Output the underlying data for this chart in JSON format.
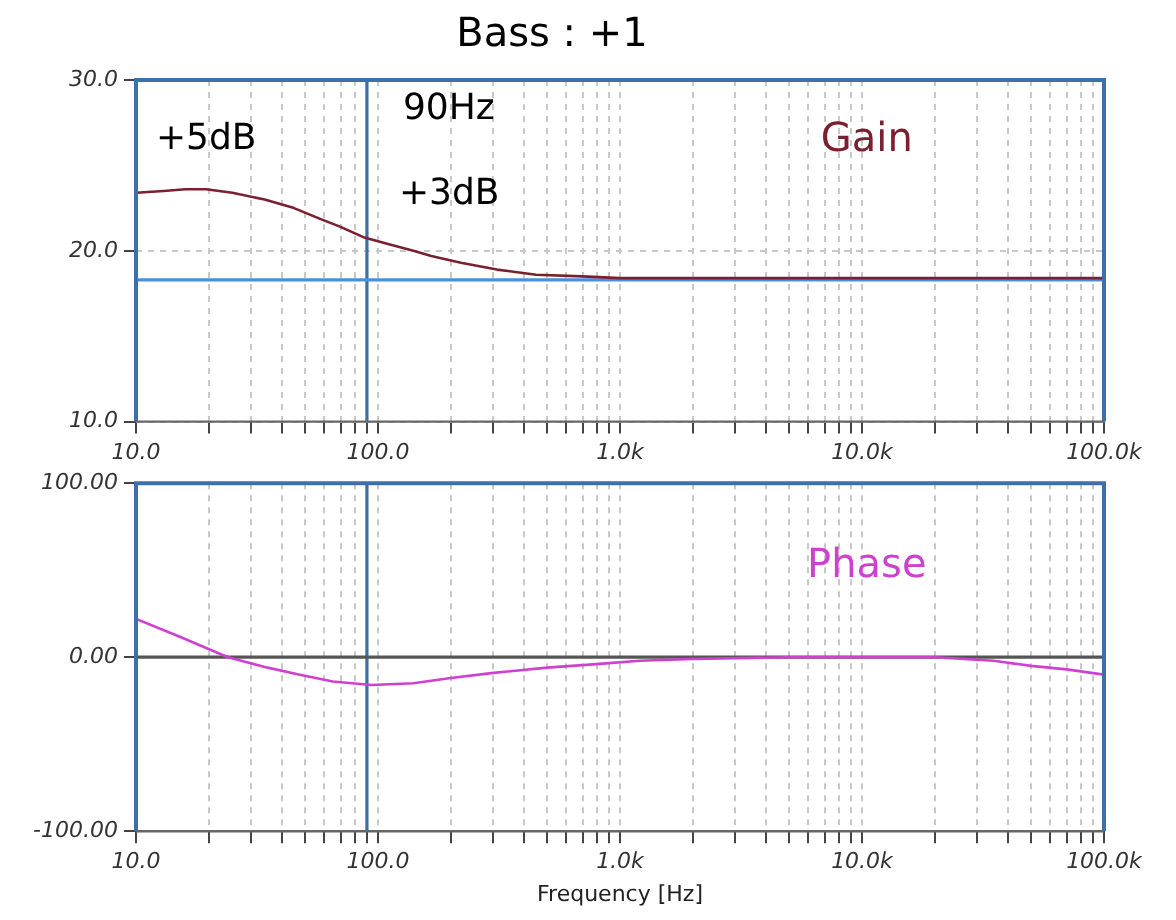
{
  "chart_data": [
    {
      "type": "line",
      "title": "Bass : +1",
      "log": "x",
      "grid": true,
      "legend": false,
      "marker": "none",
      "xlim": [
        10,
        100000
      ],
      "ylim": [
        10,
        30
      ],
      "xticks": [
        {
          "value": 10,
          "label": "10.0"
        },
        {
          "value": 20,
          "label": null
        },
        {
          "value": 30,
          "label": null
        },
        {
          "value": 40,
          "label": null
        },
        {
          "value": 50,
          "label": null
        },
        {
          "value": 60,
          "label": null
        },
        {
          "value": 70,
          "label": null
        },
        {
          "value": 80,
          "label": null
        },
        {
          "value": 90,
          "label": null
        },
        {
          "value": 100,
          "label": "100.0"
        },
        {
          "value": 200,
          "label": null
        },
        {
          "value": 300,
          "label": null
        },
        {
          "value": 400,
          "label": null
        },
        {
          "value": 500,
          "label": null
        },
        {
          "value": 600,
          "label": null
        },
        {
          "value": 700,
          "label": null
        },
        {
          "value": 800,
          "label": null
        },
        {
          "value": 900,
          "label": null
        },
        {
          "value": 1000,
          "label": "1.0k"
        },
        {
          "value": 2000,
          "label": null
        },
        {
          "value": 3000,
          "label": null
        },
        {
          "value": 4000,
          "label": null
        },
        {
          "value": 5000,
          "label": null
        },
        {
          "value": 6000,
          "label": null
        },
        {
          "value": 7000,
          "label": null
        },
        {
          "value": 8000,
          "label": null
        },
        {
          "value": 9000,
          "label": null
        },
        {
          "value": 10000,
          "label": "10.0k"
        },
        {
          "value": 20000,
          "label": null
        },
        {
          "value": 30000,
          "label": null
        },
        {
          "value": 40000,
          "label": null
        },
        {
          "value": 50000,
          "label": null
        },
        {
          "value": 60000,
          "label": null
        },
        {
          "value": 70000,
          "label": null
        },
        {
          "value": 80000,
          "label": null
        },
        {
          "value": 90000,
          "label": null
        },
        {
          "value": 100000,
          "label": "100.0k"
        }
      ],
      "yticks": [
        {
          "value": 10,
          "label": "10.0"
        },
        {
          "value": 20,
          "label": "20.0"
        },
        {
          "value": 30,
          "label": "30.0"
        }
      ],
      "series": [
        {
          "name": "Gain",
          "color": "#7a2030",
          "x": [
            10,
            13,
            16,
            19.5,
            25,
            34,
            45,
            57,
            70,
            87,
            110,
            140,
            166,
            220,
            310,
            450,
            700,
            1000,
            2000,
            5000,
            10000,
            30000,
            100000
          ],
          "values": [
            23.4,
            23.5,
            23.6,
            23.6,
            23.4,
            23.0,
            22.5,
            21.9,
            21.4,
            20.8,
            20.4,
            20.0,
            19.7,
            19.3,
            18.9,
            18.6,
            18.5,
            18.4,
            18.4,
            18.4,
            18.4,
            18.4,
            18.4
          ]
        }
      ],
      "ref_lines": [
        {
          "axis": "x",
          "value": 90,
          "label": "90Hz",
          "color": "#3a6ea5"
        },
        {
          "axis": "y",
          "value": 18.3,
          "label": null,
          "color": "#4a90d9"
        }
      ],
      "annotations": [
        {
          "text": "+5dB",
          "x": 19.5,
          "y": 23.6
        },
        {
          "text": "+3dB",
          "x": 90,
          "y": 20.8
        }
      ]
    },
    {
      "type": "line",
      "xlabel": "Frequency [Hz]",
      "log": "x",
      "grid": true,
      "legend": false,
      "marker": "none",
      "xlim": [
        10,
        100000
      ],
      "ylim": [
        -100,
        100
      ],
      "xticks": [
        {
          "value": 10,
          "label": "10.0"
        },
        {
          "value": 20,
          "label": null
        },
        {
          "value": 30,
          "label": null
        },
        {
          "value": 40,
          "label": null
        },
        {
          "value": 50,
          "label": null
        },
        {
          "value": 60,
          "label": null
        },
        {
          "value": 70,
          "label": null
        },
        {
          "value": 80,
          "label": null
        },
        {
          "value": 90,
          "label": null
        },
        {
          "value": 100,
          "label": "100.0"
        },
        {
          "value": 200,
          "label": null
        },
        {
          "value": 300,
          "label": null
        },
        {
          "value": 400,
          "label": null
        },
        {
          "value": 500,
          "label": null
        },
        {
          "value": 600,
          "label": null
        },
        {
          "value": 700,
          "label": null
        },
        {
          "value": 800,
          "label": null
        },
        {
          "value": 900,
          "label": null
        },
        {
          "value": 1000,
          "label": "1.0k"
        },
        {
          "value": 2000,
          "label": null
        },
        {
          "value": 3000,
          "label": null
        },
        {
          "value": 4000,
          "label": null
        },
        {
          "value": 5000,
          "label": null
        },
        {
          "value": 6000,
          "label": null
        },
        {
          "value": 7000,
          "label": null
        },
        {
          "value": 8000,
          "label": null
        },
        {
          "value": 9000,
          "label": null
        },
        {
          "value": 10000,
          "label": "10.0k"
        },
        {
          "value": 20000,
          "label": null
        },
        {
          "value": 30000,
          "label": null
        },
        {
          "value": 40000,
          "label": null
        },
        {
          "value": 50000,
          "label": null
        },
        {
          "value": 60000,
          "label": null
        },
        {
          "value": 70000,
          "label": null
        },
        {
          "value": 80000,
          "label": null
        },
        {
          "value": 90000,
          "label": null
        },
        {
          "value": 100000,
          "label": "100.0k"
        }
      ],
      "yticks": [
        {
          "value": -100,
          "label": "-100.00"
        },
        {
          "value": 0,
          "label": "0.00"
        },
        {
          "value": 100,
          "label": "100.00"
        }
      ],
      "series": [
        {
          "name": "Phase",
          "color": "#d040d0",
          "x": [
            10,
            15,
            24,
            35,
            47,
            65,
            94,
            140,
            200,
            300,
            500,
            800,
            1200,
            2000,
            5000,
            10000,
            20000,
            35000,
            50000,
            70000,
            100000
          ],
          "values": [
            22,
            12,
            0,
            -6,
            -10,
            -14,
            -16,
            -15,
            -12,
            -9,
            -6,
            -4,
            -2,
            -1,
            0,
            0,
            0,
            -2,
            -5,
            -7,
            -10
          ]
        }
      ],
      "ref_lines": [
        {
          "axis": "x",
          "value": 90,
          "label": null,
          "color": "#3a6ea5"
        },
        {
          "axis": "y",
          "value": 0,
          "label": null,
          "color": "#555555"
        }
      ]
    }
  ]
}
